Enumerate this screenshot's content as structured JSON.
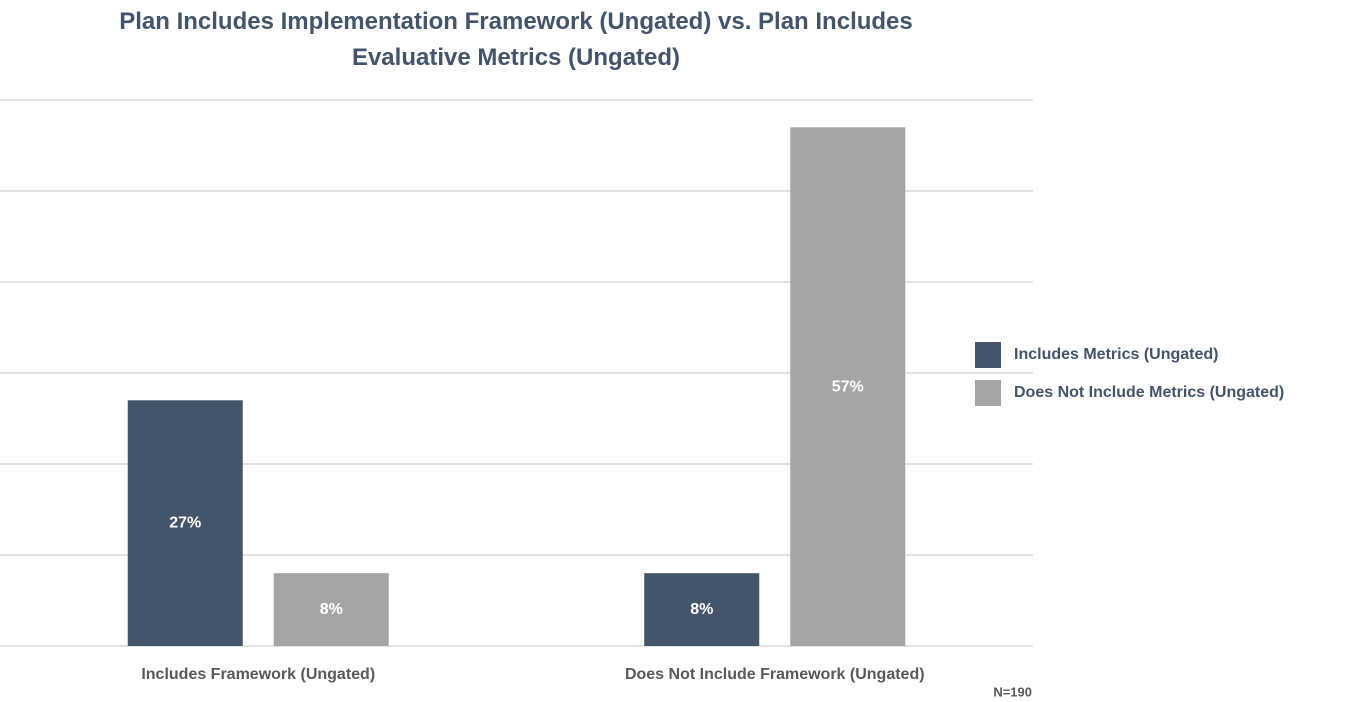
{
  "chart_data": {
    "type": "bar",
    "title": "Plan Includes Implementation Framework (Ungated) vs. Plan Includes Evaluative Metrics (Ungated)",
    "categories": [
      "Includes Framework (Ungated)",
      "Does Not Include Framework (Ungated)"
    ],
    "series": [
      {
        "name": "Includes Metrics (Ungated)",
        "color": "#44546a",
        "values": [
          27,
          8
        ],
        "value_labels": [
          "27%",
          "8%"
        ]
      },
      {
        "name": "Does Not Include Metrics (Ungated)",
        "color": "#a5a5a5",
        "values": [
          8,
          57
        ],
        "value_labels": [
          "8%",
          "57%"
        ]
      }
    ],
    "ylim": [
      0,
      60
    ],
    "yticks": [
      0,
      10,
      20,
      30,
      40,
      50,
      60
    ],
    "grid": true,
    "legend": "right",
    "annotation": "N=190"
  }
}
